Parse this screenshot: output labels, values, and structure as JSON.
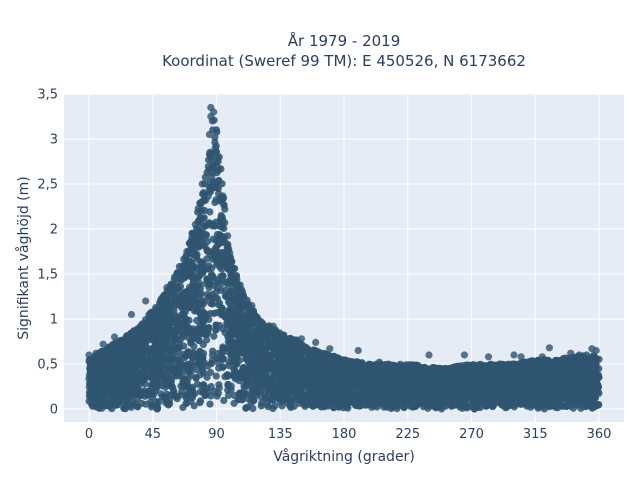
{
  "chart_data": {
    "type": "scatter",
    "title_line1": "År 1979 - 2019",
    "title_line2": "Koordinat (Sweref 99 TM): E 450526, N 6173662",
    "xlabel": "Vågriktning (grader)",
    "ylabel": "Signifikant våghöjd (m)",
    "xlim": [
      -20,
      375
    ],
    "ylim": [
      -0.15,
      3.5
    ],
    "x_ticks": [
      0,
      45,
      90,
      135,
      180,
      225,
      270,
      315,
      360
    ],
    "x_tick_labels": [
      "0",
      "45",
      "90",
      "135",
      "180",
      "225",
      "270",
      "315",
      "360"
    ],
    "y_ticks": [
      0,
      0.5,
      1,
      1.5,
      2,
      2.5,
      3,
      3.5
    ],
    "y_tick_labels": [
      "0",
      "0,5",
      "1",
      "1,5",
      "2",
      "2,5",
      "3",
      "3,5"
    ],
    "grid": true,
    "colors": {
      "marker": "#2f5570",
      "plot_bg": "#e5ecf6",
      "grid": "#ffffff",
      "text": "#2a3f5f"
    },
    "envelope": {
      "direction": [
        0,
        10,
        20,
        30,
        40,
        50,
        60,
        70,
        80,
        85,
        88,
        90,
        95,
        100,
        110,
        120,
        130,
        140,
        150,
        160,
        180,
        200,
        225,
        250,
        270,
        300,
        315,
        330,
        350,
        360
      ],
      "max_height": [
        0.55,
        0.65,
        0.75,
        0.85,
        1.0,
        1.2,
        1.45,
        1.8,
        2.4,
        2.9,
        3.3,
        3.1,
        2.4,
        1.7,
        1.25,
        1.0,
        0.9,
        0.8,
        0.75,
        0.65,
        0.55,
        0.5,
        0.5,
        0.45,
        0.5,
        0.5,
        0.55,
        0.55,
        0.6,
        0.6
      ]
    },
    "outliers": [
      {
        "x": 86,
        "y": 3.35
      },
      {
        "x": 88,
        "y": 3.3
      },
      {
        "x": 86,
        "y": 3.25
      },
      {
        "x": 87,
        "y": 3.2
      },
      {
        "x": 85,
        "y": 3.05
      },
      {
        "x": 89,
        "y": 2.9
      },
      {
        "x": 92,
        "y": 2.8
      },
      {
        "x": 80,
        "y": 2.5
      },
      {
        "x": 75,
        "y": 2.05
      },
      {
        "x": 69,
        "y": 1.75
      },
      {
        "x": 63,
        "y": 1.5
      },
      {
        "x": 55,
        "y": 1.35
      },
      {
        "x": 40,
        "y": 1.2
      },
      {
        "x": 30,
        "y": 1.05
      },
      {
        "x": 115,
        "y": 1.15
      },
      {
        "x": 130,
        "y": 0.92
      },
      {
        "x": 150,
        "y": 0.78
      },
      {
        "x": 160,
        "y": 0.74
      },
      {
        "x": 170,
        "y": 0.67
      },
      {
        "x": 190,
        "y": 0.65
      },
      {
        "x": 205,
        "y": 0.52
      },
      {
        "x": 240,
        "y": 0.6
      },
      {
        "x": 265,
        "y": 0.6
      },
      {
        "x": 282,
        "y": 0.58
      },
      {
        "x": 300,
        "y": 0.6
      },
      {
        "x": 305,
        "y": 0.58
      },
      {
        "x": 320,
        "y": 0.58
      },
      {
        "x": 325,
        "y": 0.68
      },
      {
        "x": 340,
        "y": 0.62
      },
      {
        "x": 346,
        "y": 0.6
      },
      {
        "x": 355,
        "y": 0.67
      },
      {
        "x": 358,
        "y": 0.65
      },
      {
        "x": 0,
        "y": 0.6
      },
      {
        "x": 5,
        "y": 0.62
      },
      {
        "x": 10,
        "y": 0.72
      },
      {
        "x": 18,
        "y": 0.8
      }
    ]
  }
}
